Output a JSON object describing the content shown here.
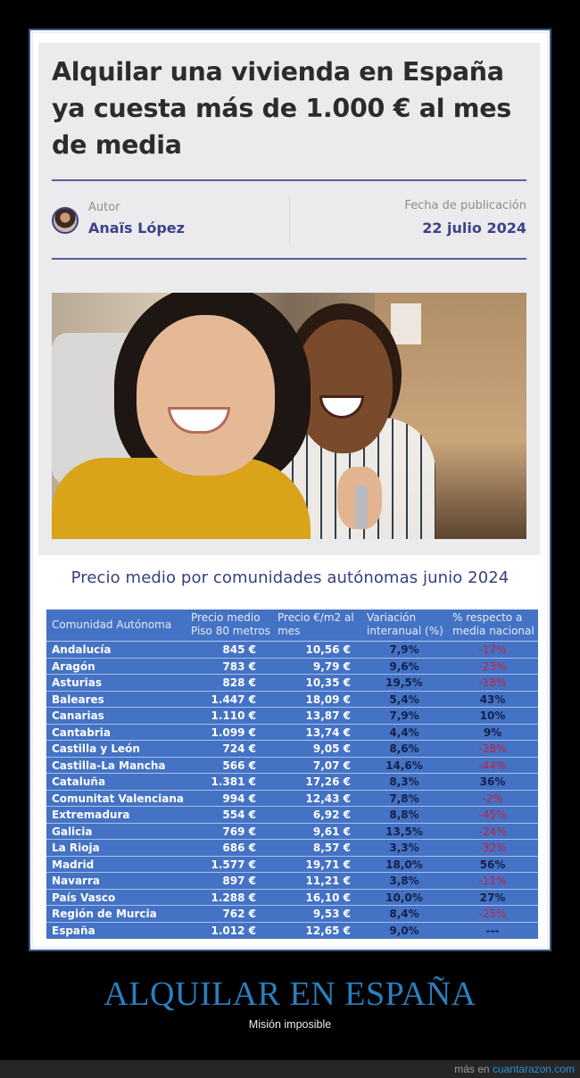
{
  "article": {
    "title": "Alquilar una vivienda en España ya cuesta más de 1.000 € al mes de media",
    "author_label": "Autor",
    "author_name": "Anaïs López",
    "date_label": "Fecha de publicación",
    "date_value": "22 julio 2024",
    "photo_alt": "Two smiling women holding house keys"
  },
  "table": {
    "title": "Precio medio por comunidades autónomas junio 2024",
    "headers": [
      "Comunidad Autónoma",
      "Precio medio Piso 80 metros",
      "Precio €/m2 al mes",
      "Variación interanual (%)",
      "% respecto a media nacional"
    ],
    "rows": [
      {
        "name": "Andalucía",
        "price": "845 €",
        "m2": "10,56 €",
        "var": "7,9%",
        "pct": "-17%"
      },
      {
        "name": "Aragón",
        "price": "783 €",
        "m2": "9,79 €",
        "var": "9,6%",
        "pct": "-23%"
      },
      {
        "name": "Asturias",
        "price": "828 €",
        "m2": "10,35 €",
        "var": "19,5%",
        "pct": "-18%"
      },
      {
        "name": "Baleares",
        "price": "1.447 €",
        "m2": "18,09 €",
        "var": "5,4%",
        "pct": "43%"
      },
      {
        "name": "Canarias",
        "price": "1.110 €",
        "m2": "13,87 €",
        "var": "7,9%",
        "pct": "10%"
      },
      {
        "name": "Cantabria",
        "price": "1.099 €",
        "m2": "13,74 €",
        "var": "4,4%",
        "pct": "9%"
      },
      {
        "name": "Castilla y León",
        "price": "724 €",
        "m2": "9,05 €",
        "var": "8,6%",
        "pct": "-28%"
      },
      {
        "name": "Castilla-La Mancha",
        "price": "566 €",
        "m2": "7,07 €",
        "var": "14,6%",
        "pct": "-44%"
      },
      {
        "name": "Cataluña",
        "price": "1.381 €",
        "m2": "17,26 €",
        "var": "8,3%",
        "pct": "36%"
      },
      {
        "name": "Comunitat Valenciana",
        "price": "994 €",
        "m2": "12,43 €",
        "var": "7,8%",
        "pct": "-2%"
      },
      {
        "name": "Extremadura",
        "price": "554 €",
        "m2": "6,92 €",
        "var": "8,8%",
        "pct": "-45%"
      },
      {
        "name": "Galicia",
        "price": "769 €",
        "m2": "9,61 €",
        "var": "13,5%",
        "pct": "-24%"
      },
      {
        "name": "La Rioja",
        "price": "686 €",
        "m2": "8,57 €",
        "var": "3,3%",
        "pct": "-32%"
      },
      {
        "name": "Madrid",
        "price": "1.577 €",
        "m2": "19,71 €",
        "var": "18,0%",
        "pct": "56%"
      },
      {
        "name": "Navarra",
        "price": "897 €",
        "m2": "11,21 €",
        "var": "3,8%",
        "pct": "-11%"
      },
      {
        "name": "País Vasco",
        "price": "1.288 €",
        "m2": "16,10 €",
        "var": "10,0%",
        "pct": "27%"
      },
      {
        "name": "Región de Murcia",
        "price": "762 €",
        "m2": "9,53 €",
        "var": "8,4%",
        "pct": "-25%"
      },
      {
        "name": "España",
        "price": "1.012 €",
        "m2": "12,65 €",
        "var": "9,0%",
        "pct": "---"
      }
    ]
  },
  "caption": {
    "title": "ALQUILAR EN ESPAÑA",
    "subtitle": "Misión imposible"
  },
  "footer": {
    "prefix": "más en ",
    "link": "cuantarazon.com"
  },
  "colors": {
    "accent": "#3d418a",
    "table_bg": "#4472c4",
    "negative": "#c81e3c",
    "caption": "#2a7fbd"
  }
}
